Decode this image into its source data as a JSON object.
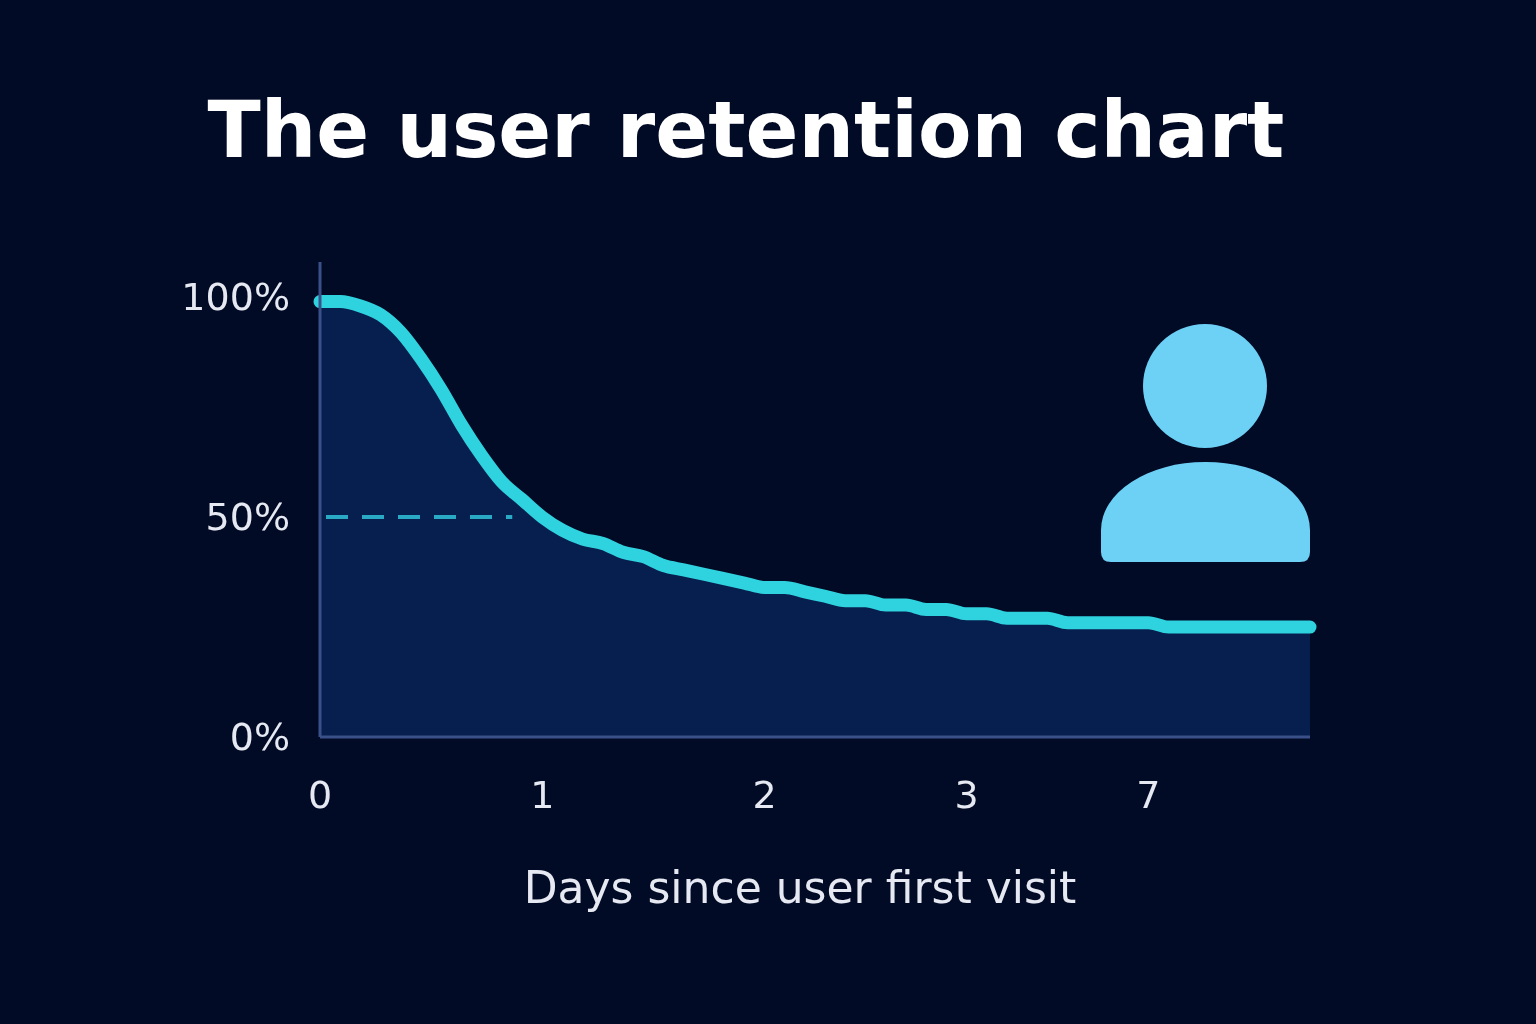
{
  "chart_data": {
    "type": "area",
    "title": "The user retention chart",
    "xlabel": "Days since user first visit",
    "categories": [
      "0",
      null,
      null,
      null,
      null,
      null,
      null,
      null,
      null,
      null,
      null,
      "1",
      null,
      null,
      null,
      null,
      null,
      null,
      null,
      null,
      null,
      null,
      "2",
      null,
      null,
      null,
      null,
      null,
      null,
      null,
      null,
      null,
      "3",
      null,
      null,
      null,
      null,
      null,
      null,
      null,
      null,
      "7",
      null,
      null,
      null,
      null,
      null,
      null,
      null,
      null
    ],
    "series": [
      {
        "color": "#2fd3df",
        "values": [
          99,
          99,
          98,
          96,
          92,
          86,
          79,
          71,
          64,
          58,
          54,
          50,
          47,
          45,
          44,
          42,
          41,
          39,
          38,
          37,
          36,
          35,
          34,
          34,
          33,
          32,
          31,
          31,
          30,
          30,
          29,
          29,
          28,
          28,
          27,
          27,
          27,
          26,
          26,
          26,
          26,
          26,
          25,
          25,
          25,
          25,
          25,
          25,
          25,
          25
        ]
      }
    ],
    "ylim": [
      0,
      108
    ],
    "yticks": [
      {
        "value": 0,
        "label": "0%"
      },
      {
        "value": 50,
        "label": "50%"
      },
      {
        "value": 100,
        "label": "100%"
      }
    ],
    "ref_lines": [
      {
        "axis": "y",
        "value": 50,
        "color": "#2aa9c4",
        "line_style": "dashed"
      }
    ]
  }
}
